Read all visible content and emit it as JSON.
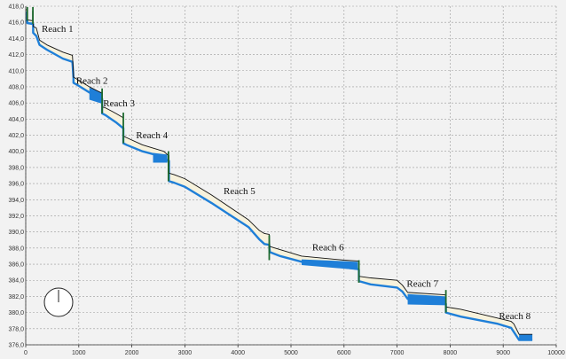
{
  "chart_data": {
    "type": "line",
    "title": "",
    "xlabel": "",
    "ylabel": "",
    "xlim": [
      0,
      10000
    ],
    "ylim": [
      376,
      418
    ],
    "x_ticks": [
      0,
      1000,
      2000,
      3000,
      4000,
      5000,
      6000,
      7000,
      8000,
      9000,
      10000
    ],
    "y_ticks": [
      "376,0",
      "378,0",
      "380,0",
      "382,0",
      "384,0",
      "386,0",
      "388,0",
      "390,0",
      "392,0",
      "394,0",
      "396,0",
      "398,0",
      "400,0",
      "402,0",
      "404,0",
      "406,0",
      "408,0",
      "410,0",
      "412,0",
      "414,0",
      "416,0",
      "418,0"
    ],
    "grid": true,
    "series": [
      {
        "color": "#111111",
        "x": [
          0,
          30,
          30,
          130,
          130,
          140,
          140,
          200,
          260,
          400,
          700,
          880,
          900,
          900,
          980,
          1200,
          1440,
          1440,
          1500,
          1700,
          1830,
          1840,
          1840,
          1900,
          2200,
          2600,
          2670,
          2700,
          2700,
          2800,
          3000,
          3500,
          4200,
          4400,
          4500,
          4590,
          4600,
          4600,
          4800,
          5200,
          6000,
          6260,
          6280,
          6280,
          6500,
          7000,
          7100,
          7200,
          7900,
          7920,
          7920,
          8200,
          8900,
          9150,
          9200,
          9300,
          9550
        ],
        "values": [
          417.6,
          417.5,
          416.3,
          416.2,
          417.4,
          417.4,
          415.5,
          415.3,
          413.8,
          413.2,
          412.3,
          411.9,
          409.8,
          409.2,
          408.9,
          408.0,
          407.2,
          405.5,
          405.4,
          404.7,
          404.2,
          404.1,
          401.9,
          401.7,
          400.8,
          400.0,
          399.6,
          399.5,
          397.3,
          397.1,
          396.6,
          394.6,
          391.5,
          390.2,
          389.8,
          389.7,
          388.4,
          388.2,
          387.8,
          387.0,
          386.5,
          386.4,
          386.3,
          384.5,
          384.3,
          384.0,
          383.4,
          382.5,
          382.2,
          382.1,
          380.7,
          380.4,
          379.3,
          378.9,
          378.6,
          377.3,
          377.3
        ]
      },
      {
        "color": "#1f7fd8",
        "x": [
          0,
          30,
          30,
          130,
          130,
          140,
          140,
          200,
          260,
          400,
          700,
          880,
          900,
          900,
          980,
          1200,
          1440,
          1440,
          1500,
          1700,
          1830,
          1840,
          1840,
          1900,
          2200,
          2600,
          2670,
          2700,
          2700,
          2800,
          3000,
          3500,
          4200,
          4400,
          4500,
          4590,
          4600,
          4600,
          4800,
          5200,
          6000,
          6260,
          6280,
          6280,
          6500,
          7000,
          7100,
          7200,
          7900,
          7920,
          7920,
          8200,
          8900,
          9150,
          9200,
          9300,
          9550
        ],
        "values": [
          416.3,
          416.2,
          415.9,
          415.8,
          415.8,
          415.8,
          414.7,
          414.3,
          413.2,
          412.6,
          411.5,
          411.1,
          409.1,
          408.5,
          408.2,
          407.3,
          406.5,
          404.7,
          404.5,
          403.6,
          402.9,
          402.9,
          401.0,
          400.8,
          400.0,
          399.3,
          398.9,
          398.8,
          396.3,
          396.1,
          395.6,
          393.6,
          390.6,
          389.1,
          388.5,
          388.4,
          387.6,
          387.5,
          387.0,
          386.3,
          385.6,
          385.4,
          385.3,
          383.9,
          383.5,
          383.1,
          382.6,
          381.7,
          381.3,
          381.1,
          380.0,
          379.5,
          378.6,
          378.1,
          377.6,
          376.6,
          376.6
        ]
      }
    ],
    "fill_between": [
      {
        "color": "#1f7fd8",
        "x": [
          0,
          30,
          30,
          130
        ],
        "upper": [
          417.4,
          417.3,
          416.0,
          416.0
        ],
        "lower": [
          416.3,
          416.2,
          415.9,
          415.8
        ]
      },
      {
        "color": "#1f7fd8",
        "x": [
          1200,
          1440
        ],
        "upper": [
          407.9,
          407.3
        ],
        "lower": [
          406.4,
          405.9
        ]
      },
      {
        "color": "#1f7fd8",
        "x": [
          1830,
          1840
        ],
        "upper": [
          404.1,
          404.1
        ],
        "lower": [
          402.9,
          402.9
        ]
      },
      {
        "color": "#1f7fd8",
        "x": [
          2400,
          2670
        ],
        "upper": [
          399.8,
          399.6
        ],
        "lower": [
          398.6,
          398.6
        ]
      },
      {
        "color": "#1f7fd8",
        "x": [
          5200,
          6260
        ],
        "upper": [
          386.6,
          386.3
        ],
        "lower": [
          385.9,
          385.3
        ]
      },
      {
        "color": "#1f7fd8",
        "x": [
          7200,
          7920
        ],
        "upper": [
          382.3,
          382.0
        ],
        "lower": [
          381.0,
          380.9
        ]
      },
      {
        "color": "#1f7fd8",
        "x": [
          9300,
          9550
        ],
        "upper": [
          377.3,
          377.3
        ],
        "lower": [
          376.6,
          376.6
        ]
      }
    ],
    "structures": [
      {
        "x": 30,
        "top": 417.9,
        "bottom": 416.2
      },
      {
        "x": 135,
        "top": 417.9,
        "bottom": 415.8
      },
      {
        "x": 1440,
        "top": 407.8,
        "bottom": 404.7
      },
      {
        "x": 1840,
        "top": 404.8,
        "bottom": 401.0
      },
      {
        "x": 2690,
        "top": 400.0,
        "bottom": 396.3
      },
      {
        "x": 4590,
        "top": 389.6,
        "bottom": 386.5
      },
      {
        "x": 6280,
        "top": 386.5,
        "bottom": 383.7
      },
      {
        "x": 7920,
        "top": 382.8,
        "bottom": 380.0
      }
    ],
    "structure_color": "#1e6a2e",
    "annotations": [
      {
        "text": "Reach 1",
        "x": 300,
        "y": 414.8
      },
      {
        "text": "Reach 2",
        "x": 950,
        "y": 408.4
      },
      {
        "text": "Reach 3",
        "x": 1460,
        "y": 405.6
      },
      {
        "text": "Reach 4",
        "x": 2080,
        "y": 401.6
      },
      {
        "text": "Reach 5",
        "x": 3730,
        "y": 394.7
      },
      {
        "text": "Reach 6",
        "x": 5400,
        "y": 387.7
      },
      {
        "text": "Reach 7",
        "x": 7180,
        "y": 383.2
      },
      {
        "text": "Reach 8",
        "x": 8920,
        "y": 379.2
      }
    ],
    "band_fill": "#f7f2dc",
    "background": "#f2f2f2",
    "grid_color": "#9a9a9a"
  }
}
